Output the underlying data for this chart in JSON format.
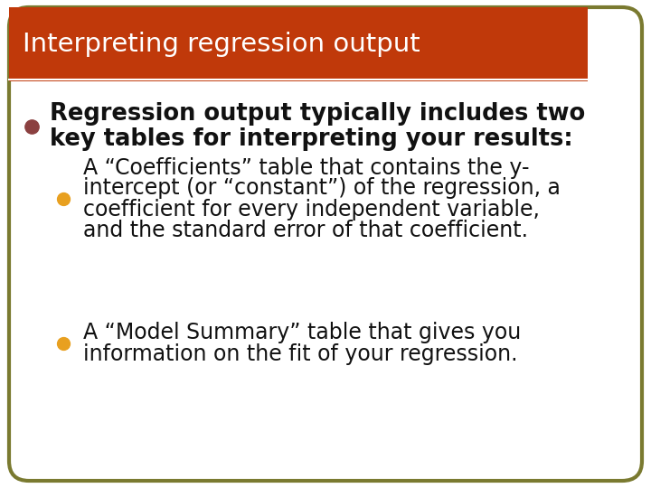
{
  "title": "Interpreting regression output",
  "title_bg_color": "#C0390A",
  "title_text_color": "#FFFFFF",
  "body_bg_color": "#FFFFFF",
  "border_color": "#7A7A30",
  "bullet1_color": "#8B4040",
  "bullet2_color": "#E8A020",
  "bullet3_color": "#E8A020",
  "sep_color": "#FFFFFF",
  "bullet1_text_line1": "Regression output typically includes two",
  "bullet1_text_line2": "key tables for interpreting your results:",
  "bullet2_line1": "A “Coefficients” table that contains the y-",
  "bullet2_line2": "intercept (or “constant”) of the regression, a",
  "bullet2_line3": "coefficient for every independent variable,",
  "bullet2_line4": "and the standard error of that coefficient.",
  "bullet3_line1": "A “Model Summary” table that gives you",
  "bullet3_line2": "information on the fit of your regression.",
  "title_fontsize": 21,
  "body_fontsize": 18.5,
  "sub_fontsize": 17
}
